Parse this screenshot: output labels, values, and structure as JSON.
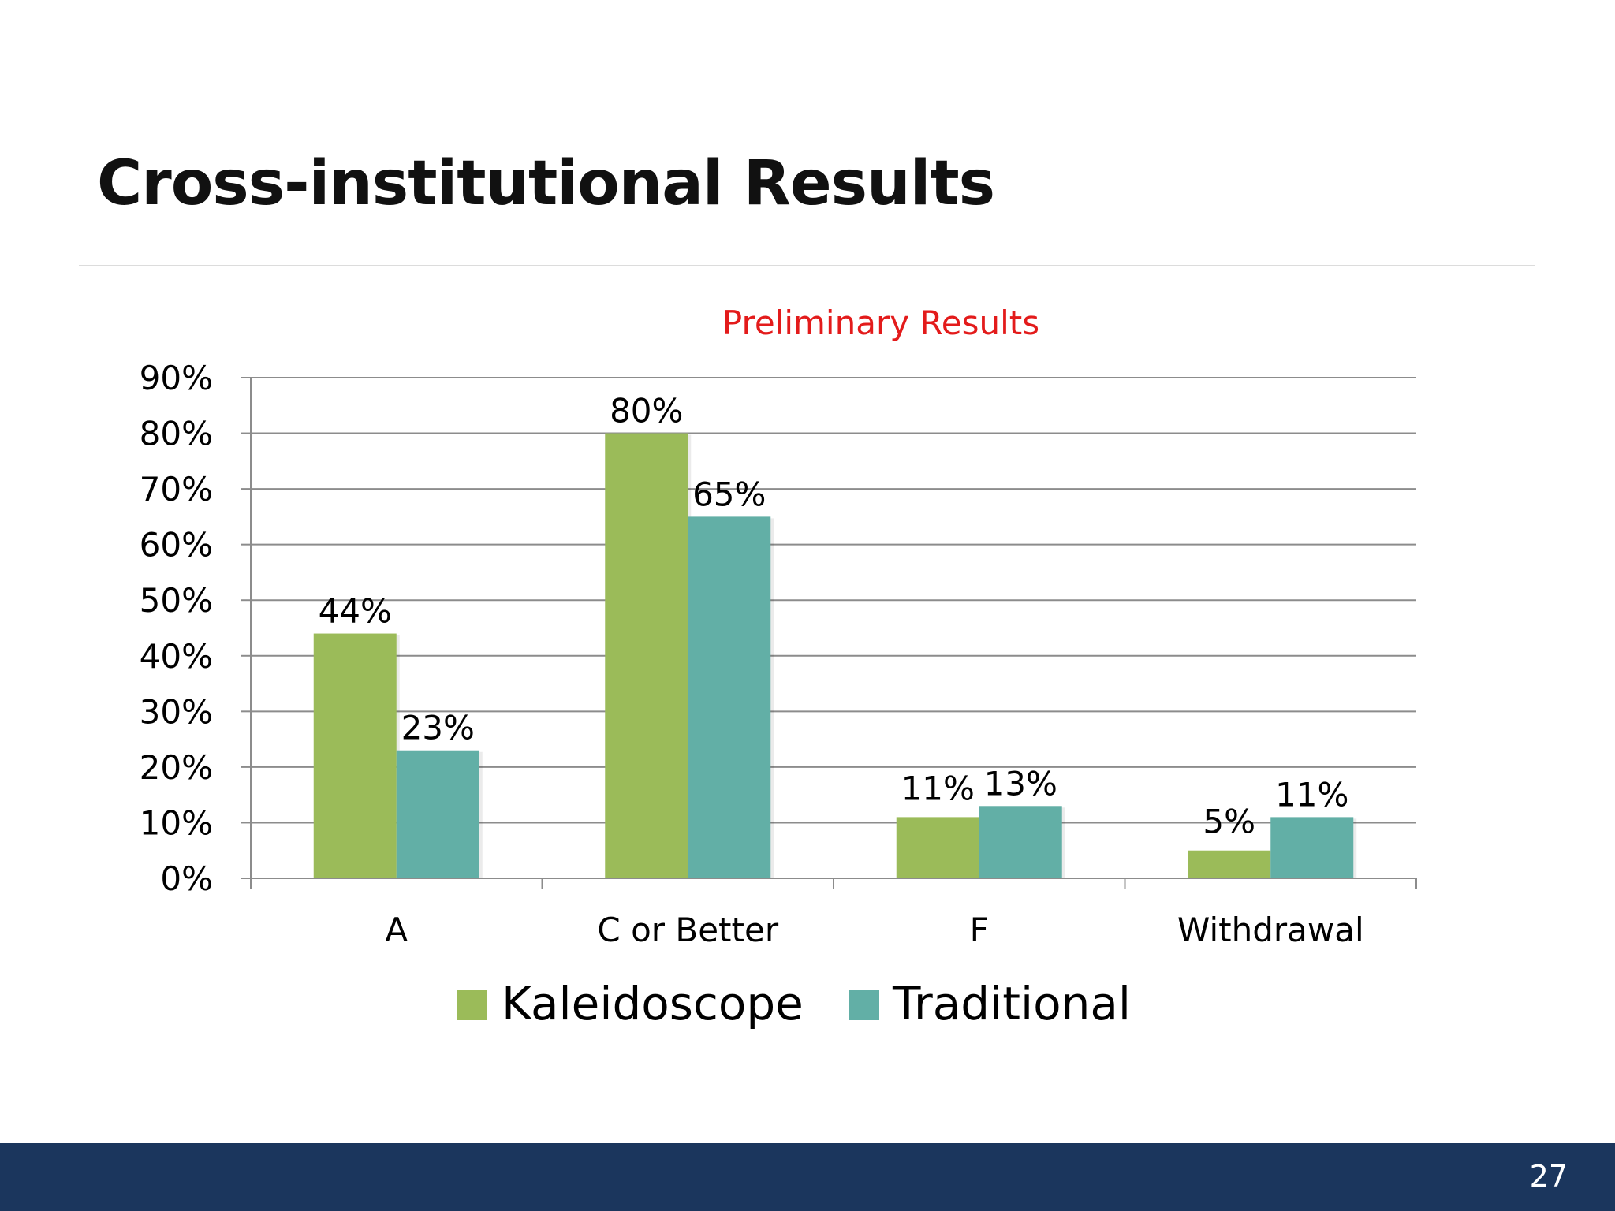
{
  "slide": {
    "title": "Cross-institutional Results",
    "page_number": "27"
  },
  "chart_data": {
    "type": "bar",
    "title": "Preliminary Results",
    "title_color": "#e31b1b",
    "categories": [
      "A",
      "C or Better",
      "F",
      "Withdrawal"
    ],
    "series": [
      {
        "name": "Kaleidoscope",
        "color": "#9bbb59",
        "values": [
          44,
          80,
          11,
          5
        ],
        "labels": [
          "44%",
          "80%",
          "11%",
          "5%"
        ]
      },
      {
        "name": "Traditional",
        "color": "#62afa6",
        "values": [
          23,
          65,
          13,
          11
        ],
        "labels": [
          "23%",
          "65%",
          "13%",
          "11%"
        ]
      }
    ],
    "ylim": [
      0,
      90
    ],
    "ytick_labels": [
      "0%",
      "10%",
      "20%",
      "30%",
      "40%",
      "50%",
      "60%",
      "70%",
      "80%",
      "90%"
    ],
    "xlabel": "",
    "ylabel": "",
    "grid": true,
    "legend_position": "bottom"
  }
}
